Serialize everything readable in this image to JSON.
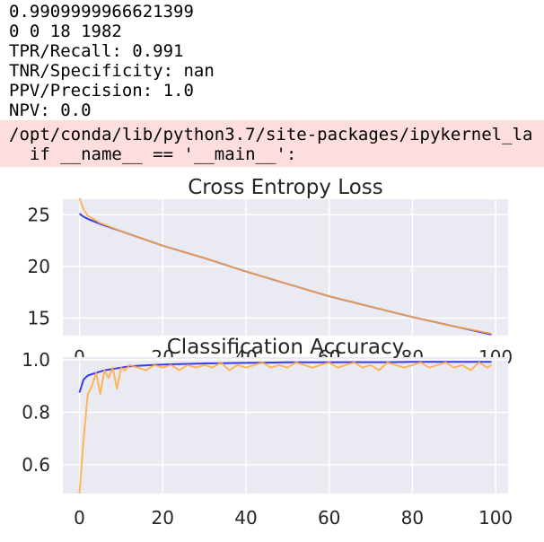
{
  "output": {
    "lines": [
      "0.9909999966621399",
      "0 0 18 1982",
      "TPR/Recall: 0.991",
      "TNR/Specificity: nan",
      "PPV/Precision: 1.0",
      "NPV: 0.0"
    ]
  },
  "warning": {
    "line1": "/opt/conda/lib/python3.7/site-packages/ipykernel_la",
    "line2": "  if __name__ == '__main__':"
  },
  "colors": {
    "train": "#3a3af5",
    "test": "#ffac40",
    "plot_bg": "#eaeaf2",
    "grid": "#ffffff"
  },
  "chart_data": [
    {
      "type": "line",
      "title": "Cross Entropy Loss",
      "xlabel": "",
      "ylabel": "",
      "xlim": [
        -4,
        103
      ],
      "ylim": [
        13.3,
        26.5
      ],
      "xticks": [
        0,
        20,
        40,
        60,
        80,
        100
      ],
      "yticks": [
        15,
        20,
        25
      ],
      "grid": true,
      "series": [
        {
          "color": "#3a3af5",
          "x": [
            0,
            1,
            2,
            5,
            10,
            20,
            30,
            40,
            50,
            60,
            70,
            80,
            90,
            99
          ],
          "y": [
            25.1,
            24.8,
            24.6,
            24.1,
            23.4,
            22.0,
            20.8,
            19.5,
            18.3,
            17.1,
            16.1,
            15.1,
            14.2,
            13.4
          ]
        },
        {
          "color": "#ffac40",
          "x": [
            0,
            1,
            2,
            5,
            10,
            20,
            30,
            40,
            50,
            60,
            70,
            80,
            90,
            99
          ],
          "y": [
            26.6,
            25.5,
            24.9,
            24.2,
            23.4,
            22.0,
            20.8,
            19.5,
            18.3,
            17.1,
            16.1,
            15.1,
            14.2,
            13.5
          ]
        }
      ]
    },
    {
      "type": "line",
      "title": "Classification Accuracy",
      "xlabel": "",
      "ylabel": "",
      "xlim": [
        -4,
        103
      ],
      "ylim": [
        0.49,
        1.01
      ],
      "xticks": [
        0,
        20,
        40,
        60,
        80,
        100
      ],
      "yticks": [
        0.6,
        0.8,
        1.0
      ],
      "grid": true,
      "series": [
        {
          "color": "#3a3af5",
          "x": [
            0,
            1,
            2,
            3,
            4,
            5,
            6,
            8,
            10,
            12,
            15,
            20,
            25,
            30,
            35,
            40,
            45,
            50,
            55,
            60,
            65,
            70,
            75,
            80,
            85,
            90,
            95,
            99
          ],
          "y": [
            0.875,
            0.925,
            0.94,
            0.945,
            0.95,
            0.955,
            0.96,
            0.965,
            0.97,
            0.975,
            0.978,
            0.982,
            0.984,
            0.986,
            0.987,
            0.988,
            0.989,
            0.99,
            0.99,
            0.99,
            0.991,
            0.991,
            0.991,
            0.992,
            0.992,
            0.992,
            0.992,
            0.992
          ]
        },
        {
          "color": "#ffac40",
          "x": [
            0,
            1,
            2,
            3,
            4,
            5,
            6,
            7,
            8,
            9,
            10,
            11,
            12,
            14,
            16,
            18,
            20,
            22,
            24,
            26,
            28,
            30,
            32,
            34,
            36,
            38,
            40,
            42,
            44,
            46,
            48,
            50,
            52,
            54,
            56,
            58,
            60,
            62,
            64,
            66,
            68,
            70,
            72,
            74,
            76,
            78,
            80,
            82,
            84,
            86,
            88,
            90,
            92,
            94,
            96,
            98,
            99
          ],
          "y": [
            0.49,
            0.7,
            0.87,
            0.9,
            0.95,
            0.87,
            0.96,
            0.93,
            0.97,
            0.89,
            0.97,
            0.96,
            0.98,
            0.97,
            0.96,
            0.98,
            0.97,
            0.98,
            0.96,
            0.98,
            0.97,
            0.98,
            0.97,
            0.99,
            0.96,
            0.98,
            0.97,
            0.98,
            0.99,
            0.97,
            0.98,
            0.97,
            0.99,
            0.98,
            0.97,
            0.98,
            0.99,
            0.97,
            0.98,
            0.99,
            0.97,
            0.98,
            0.96,
            0.99,
            0.98,
            0.97,
            0.98,
            0.99,
            0.97,
            0.98,
            0.99,
            0.97,
            0.98,
            0.96,
            0.99,
            0.97,
            0.98
          ]
        }
      ]
    }
  ]
}
